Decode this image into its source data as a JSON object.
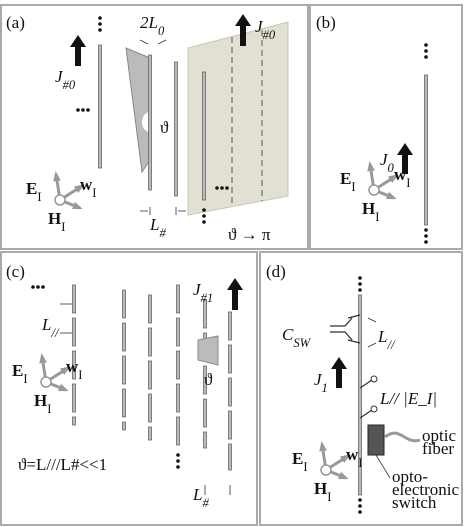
{
  "panels": [
    {
      "label": "(a)",
      "current_left": {
        "main": "J",
        "sub": "#0"
      },
      "period": {
        "main": "2L",
        "sub": "0"
      },
      "current_right": {
        "main": "J",
        "sub": "#0"
      },
      "angle": "ϑ",
      "spacing": {
        "main": "L",
        "sub": "#"
      },
      "limit": "ϑ → π",
      "field": {
        "e": {
          "main": "E",
          "sub": "I"
        },
        "w": {
          "main": "w",
          "sub": "I"
        },
        "h": {
          "main": "H",
          "sub": "I"
        }
      }
    },
    {
      "label": "(b)",
      "current": {
        "main": "J",
        "sub": "0"
      },
      "field": {
        "e": {
          "main": "E",
          "sub": "I"
        },
        "w": {
          "main": "w",
          "sub": "I"
        },
        "h": {
          "main": "H",
          "sub": "I"
        }
      }
    },
    {
      "label": "(c)",
      "gap": {
        "main": "L",
        "sub": "//"
      },
      "current": {
        "main": "J",
        "sub": "#1"
      },
      "angle": "ϑ",
      "relation": "ϑ=L///L#<<1",
      "spacing": {
        "main": "L",
        "sub": "#"
      },
      "field": {
        "e": {
          "main": "E",
          "sub": "I"
        },
        "w": {
          "main": "w",
          "sub": "I"
        },
        "h": {
          "main": "H",
          "sub": "I"
        }
      }
    },
    {
      "label": "(d)",
      "capacitor": {
        "main": "C",
        "sub": "SW"
      },
      "gap": {
        "main": "L",
        "sub": "//"
      },
      "current": {
        "main": "J",
        "sub": "1"
      },
      "voltage": "L// |E_I|",
      "fiber": [
        "optic",
        "fiber"
      ],
      "switch": [
        "opto-",
        "electronic",
        "switch"
      ],
      "field": {
        "e": {
          "main": "E",
          "sub": "I"
        },
        "w": {
          "main": "w",
          "sub": "I"
        },
        "h": {
          "main": "H",
          "sub": "I"
        }
      }
    }
  ]
}
